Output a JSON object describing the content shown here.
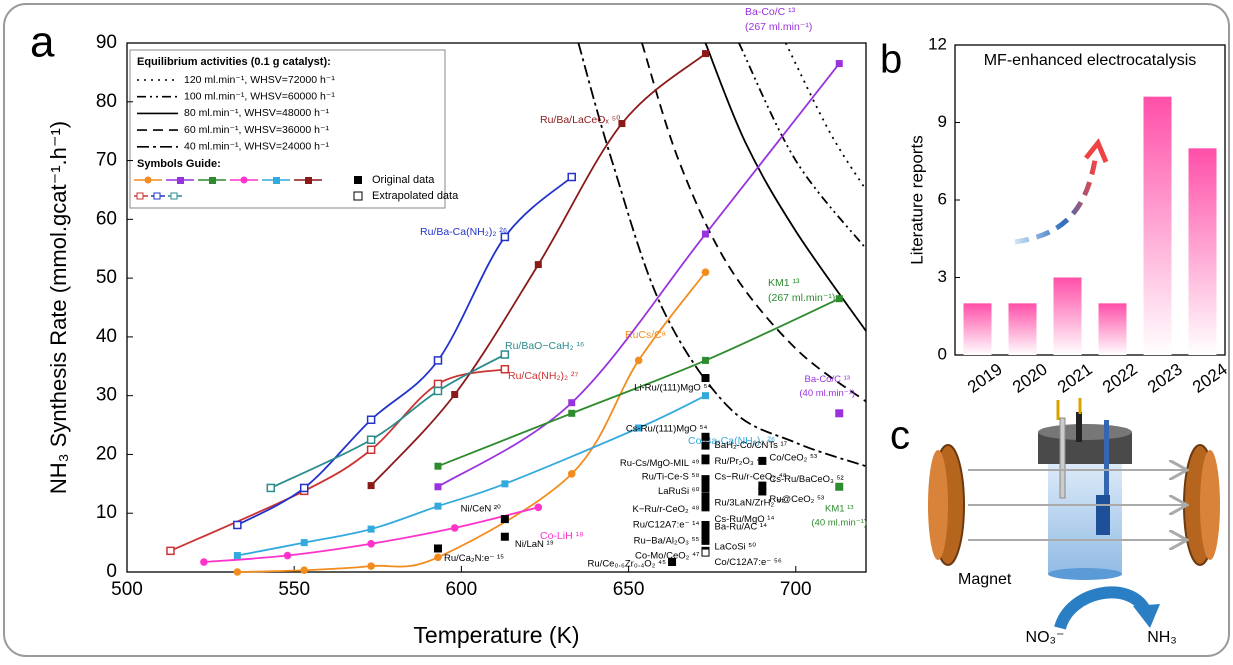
{
  "panels": {
    "a": "a",
    "b": "b",
    "c": "c"
  },
  "chart_data": [
    {
      "type": "line",
      "x_label": "Temperature (K)",
      "y_label": "NH₃ Synthesis Rate (mmol.gcat⁻¹.h⁻¹)",
      "xlim": [
        500,
        721
      ],
      "ylim": [
        0,
        90
      ],
      "xticks": [
        500,
        550,
        600,
        650,
        700
      ],
      "yticks": [
        0,
        10,
        20,
        30,
        40,
        50,
        60,
        70,
        80,
        90
      ],
      "legend_title": "Equilibrium activities (0.1 g catalyst):",
      "symbols_title": "Symbols Guide:",
      "original_label": "Original data",
      "extrapolated_label": "Extrapolated data",
      "curves": [
        {
          "name": "120 ml.min⁻¹, WHSV=72000 h⁻¹",
          "dash": "dotted",
          "x": [
            697,
            710,
            721
          ],
          "values": [
            90,
            75,
            65
          ]
        },
        {
          "name": "100 ml.min⁻¹, WHSV=60000 h⁻¹",
          "dash": "dash-dot-dot",
          "x": [
            683,
            700,
            721
          ],
          "values": [
            90,
            70,
            55
          ]
        },
        {
          "name": "80 ml.min⁻¹, WHSV=48000 h⁻¹",
          "dash": "solid",
          "x": [
            673,
            685,
            700,
            721
          ],
          "values": [
            90,
            73,
            58,
            41
          ]
        },
        {
          "name": "60 ml.min⁻¹, WHSV=36000 h⁻¹",
          "dash": "dashed",
          "x": [
            654,
            665,
            680,
            700,
            721
          ],
          "values": [
            90,
            70,
            52,
            38,
            29
          ]
        },
        {
          "name": "40 ml.min⁻¹, WHSV=24000 h⁻¹",
          "dash": "dash-dot",
          "x": [
            635,
            645,
            660,
            680,
            700,
            721
          ],
          "values": [
            90,
            70,
            45,
            28,
            22,
            18
          ]
        }
      ],
      "series": [
        {
          "name": [
            "RuCs/Cᵃ"
          ],
          "color": "#f28c1e",
          "marker": "filled",
          "x": [
            533,
            553,
            573,
            593,
            633,
            653,
            673
          ],
          "values": [
            0,
            0.3,
            1,
            2.5,
            16.7,
            36,
            51
          ]
        },
        {
          "name": [
            "Ba-Co/C ¹³",
            "(267 ml.min⁻¹)"
          ],
          "color": "#9933dd",
          "marker": "filled",
          "x": [
            593,
            633,
            673,
            713
          ],
          "values": [
            14.5,
            28.8,
            57.5,
            86.5
          ]
        },
        {
          "name": [
            "KM1 ¹³",
            "(267 ml.min⁻¹)"
          ],
          "color": "#2e8b2e",
          "marker": "filled",
          "x": [
            593,
            633,
            673,
            713
          ],
          "values": [
            18,
            27,
            36,
            46.5
          ]
        },
        {
          "name": [
            "Co-LiH ¹⁸"
          ],
          "color": "#ff33cc",
          "marker": "filled",
          "x": [
            523,
            548,
            573,
            598,
            623
          ],
          "values": [
            1.7,
            2.8,
            4.8,
            7.5,
            11
          ]
        },
        {
          "name": [
            "Co/Ba-Ca(NH₂)₂ ²⁶"
          ],
          "color": "#33aadd",
          "marker": "filled",
          "x": [
            533,
            553,
            573,
            593,
            613,
            653,
            673
          ],
          "values": [
            2.8,
            5,
            7.3,
            11.2,
            15,
            24.5,
            30
          ]
        },
        {
          "name": [
            "Ru/Ba/LaCeOₓ ⁵⁰"
          ],
          "color": "#8b1a1a",
          "marker": "filled",
          "x": [
            573,
            598,
            623,
            648,
            673
          ],
          "values": [
            14.7,
            30.2,
            52.3,
            76.3,
            88.2
          ]
        },
        {
          "name": [
            "Ru/Ca(NH₂)₂ ²⁷"
          ],
          "color": "#cc3333",
          "marker": "hollow",
          "x": [
            513,
            553,
            573,
            593,
            613
          ],
          "values": [
            3.6,
            13.8,
            20.8,
            32,
            34.5
          ]
        },
        {
          "name": [
            "Ru/Ba-Ca(NH₂)₂ ²⁶"
          ],
          "color": "#2233cc",
          "marker": "hollow",
          "x": [
            533,
            553,
            573,
            593,
            613,
            633
          ],
          "values": [
            8,
            14.3,
            25.9,
            36,
            57,
            67.2
          ]
        },
        {
          "name": [
            "Ru/BaO−CaH₂ ¹⁶"
          ],
          "color": "#2a8c8c",
          "marker": "hollow",
          "x": [
            543,
            573,
            593,
            613
          ],
          "values": [
            14.3,
            22.5,
            30.8,
            37
          ]
        }
      ],
      "points": [
        {
          "name": [
            "Ni/CeN ²⁰"
          ],
          "color": "#000000",
          "x": 613,
          "y": 9
        },
        {
          "name": [
            "Ru/Ca₂N:e⁻ ¹⁵"
          ],
          "color": "#000000",
          "x": 593,
          "y": 4
        },
        {
          "name": [
            "Ni/LaN ¹⁹"
          ],
          "color": "#000000",
          "x": 613,
          "y": 6
        },
        {
          "name": [
            "Li-Ru/(111)MgO ⁵⁴"
          ],
          "color": "#000000",
          "x": 673,
          "y": 33
        },
        {
          "name": [
            "Cs-Ru/(111)MgO ⁵⁴"
          ],
          "color": "#000000",
          "x": 673,
          "y": 23
        },
        {
          "name": [
            "BaH₂-Co/CNTs ¹⁷"
          ],
          "color": "#000000",
          "x": 673,
          "y": 21.5
        },
        {
          "name": [
            "Ru/Pr₂O₃ ⁴⁶"
          ],
          "color": "#000000",
          "x": 673,
          "y": 19.3
        },
        {
          "name": [
            "Ru-Cs/MgO-MIL ⁴⁹"
          ],
          "color": "#000000",
          "x": 673,
          "y": 19
        },
        {
          "name": [
            "Co/CeO₂ ⁵³"
          ],
          "color": "#000000",
          "x": 690,
          "y": 18.9
        },
        {
          "name": [
            "Cs-Ru/BaCeO₃ ⁵²"
          ],
          "color": "#000000",
          "x": 690,
          "y": 14.7
        },
        {
          "name": [
            "Ru@CeO₂ ⁵³"
          ],
          "color": "#000000",
          "x": 690,
          "y": 13.7
        },
        {
          "name": [
            "Ru/Ti-Ce-S ⁵⁸"
          ],
          "color": "#000000",
          "x": 673,
          "y": 15.8
        },
        {
          "name": [
            "Cs−Ru/r-CeO₂ ⁴⁸"
          ],
          "color": "#000000",
          "x": 673,
          "y": 15.5
        },
        {
          "name": [
            "LaRuSi ⁶⁰"
          ],
          "color": "#000000",
          "x": 673,
          "y": 14.2
        },
        {
          "name": [
            "Ru/3LaN/ZrH₂ ⁵⁷"
          ],
          "color": "#000000",
          "x": 673,
          "y": 12.8
        },
        {
          "name": [
            "K−Ru/r-CeO₂ ⁴⁸"
          ],
          "color": "#000000",
          "x": 673,
          "y": 12.2
        },
        {
          "name": [
            "Cs-Ru/MgO ¹⁴"
          ],
          "color": "#000000",
          "x": 673,
          "y": 11
        },
        {
          "name": [
            "Ru/C12A7:e⁻ ¹⁴"
          ],
          "color": "#000000",
          "x": 673,
          "y": 8
        },
        {
          "name": [
            "Ba-Ru/AC ¹⁴"
          ],
          "color": "#000000",
          "x": 673,
          "y": 7.8
        },
        {
          "name": [
            "Ru−Ba/Al₂O₃ ⁵⁵"
          ],
          "color": "#000000",
          "x": 673,
          "y": 6.5
        },
        {
          "name": [
            "LaCoSi ⁵⁰"
          ],
          "color": "#000000",
          "x": 673,
          "y": 5.3
        },
        {
          "name": [
            "Co-Mo/CeO₂ ⁴⁷"
          ],
          "color": "#000000",
          "x": 673,
          "y": 3.6
        },
        {
          "name": [
            "Co/C12A7:e⁻ ⁵⁶"
          ],
          "color": "#000000",
          "x": 673,
          "y": 3.3
        },
        {
          "name": [
            "Ru/Ce₀.₆Zr₀.₄O₂ ⁴⁵"
          ],
          "color": "#000000",
          "x": 663,
          "y": 1.7
        },
        {
          "name": [
            "KM1 ¹³",
            "(40 ml.min⁻¹)"
          ],
          "color": "#2e8b2e",
          "x": 713,
          "y": 14.5
        },
        {
          "name": [
            "Ba-Co/C ¹³",
            "(40 ml.min⁻¹)"
          ],
          "color": "#9933dd",
          "x": 713,
          "y": 27
        }
      ]
    },
    {
      "type": "bar",
      "title": "MF-enhanced electrocatalysis",
      "y_label": "Literature reports",
      "categories": [
        "2019",
        "2020",
        "2021",
        "2022",
        "2023",
        "2024"
      ],
      "values": [
        2,
        2,
        3,
        2,
        10,
        8
      ],
      "color": "#ff4fa8",
      "ylim": [
        0,
        12
      ],
      "yticks": [
        0,
        3,
        6,
        9,
        12
      ]
    }
  ],
  "diagram": {
    "magnet": "Magnet",
    "reactant": "NO₃⁻",
    "product": "NH₃"
  }
}
